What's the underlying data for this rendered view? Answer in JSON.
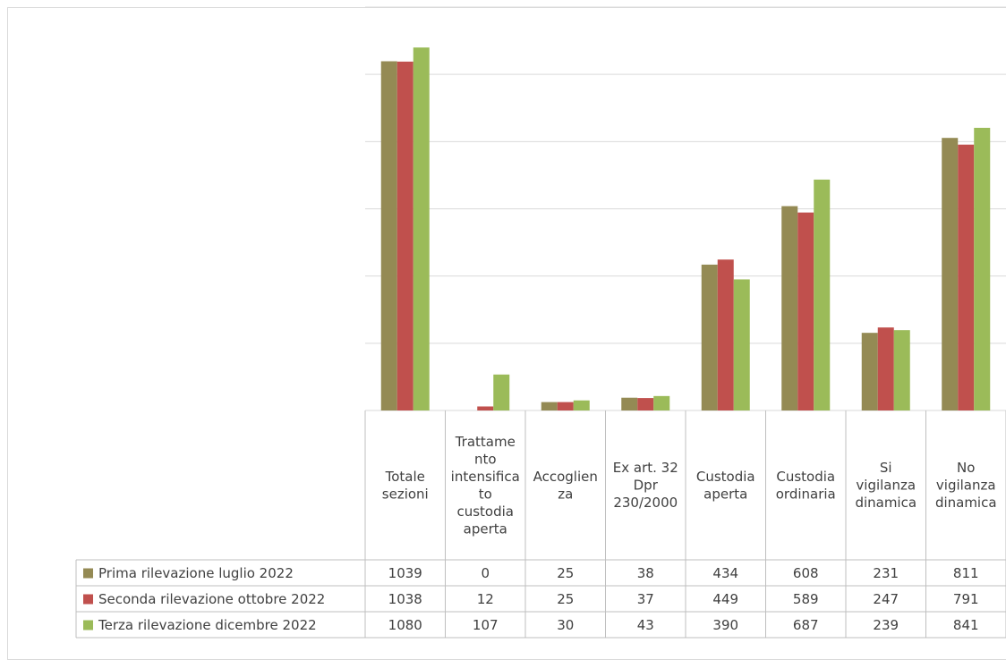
{
  "chart_data": {
    "type": "bar",
    "title": "",
    "categories": [
      [
        "Totale",
        "sezioni"
      ],
      [
        "Trattame",
        "nto",
        "intensifica",
        "to",
        "custodia",
        "aperta"
      ],
      [
        "Accoglien",
        "za"
      ],
      [
        "Ex art. 32",
        "Dpr",
        "230/2000"
      ],
      [
        "Custodia",
        "aperta"
      ],
      [
        "Custodia",
        "ordinaria"
      ],
      [
        "Si",
        "vigilanza",
        "dinamica"
      ],
      [
        "No",
        "vigilanza",
        "dinamica"
      ]
    ],
    "series": [
      {
        "name": "Prima rilevazione luglio 2022",
        "color": "#948a54",
        "values": [
          1039,
          0,
          25,
          38,
          434,
          608,
          231,
          811
        ]
      },
      {
        "name": "Seconda rilevazione ottobre 2022",
        "color": "#c0504d",
        "values": [
          1038,
          12,
          25,
          37,
          449,
          589,
          247,
          791
        ]
      },
      {
        "name": "Terza rilevazione dicembre 2022",
        "color": "#9bbb59",
        "values": [
          1080,
          107,
          30,
          43,
          390,
          687,
          239,
          841
        ]
      }
    ],
    "ylim": [
      0,
      1200
    ],
    "grid": true,
    "legend": "data-table",
    "data_table": true
  }
}
